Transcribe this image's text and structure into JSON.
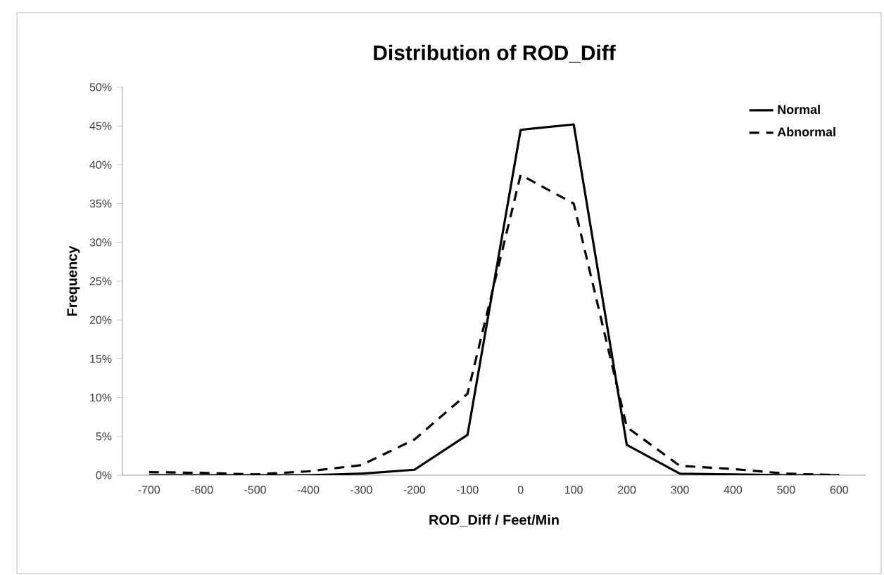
{
  "chart_data": {
    "type": "line",
    "title": "Distribution of ROD_Diff",
    "xlabel": "ROD_Diff / Feet/Min",
    "ylabel": "Frequency",
    "categories": [
      "-700",
      "-600",
      "-500",
      "-400",
      "-300",
      "-200",
      "-100",
      "0",
      "100",
      "200",
      "300",
      "400",
      "500",
      "600"
    ],
    "series": [
      {
        "name": "Normal",
        "color": "#000000",
        "line_style": "solid",
        "values": [
          0,
          0,
          0,
          0,
          0.2,
          0.7,
          5.2,
          44.5,
          45.2,
          3.9,
          0.2,
          0.1,
          0,
          0
        ]
      },
      {
        "name": "Abnormal",
        "color": "#000000",
        "line_style": "dashed",
        "values": [
          0.4,
          0.3,
          0.1,
          0.5,
          1.3,
          4.6,
          10.5,
          38.7,
          35,
          6.2,
          1.2,
          0.8,
          0.2,
          0
        ]
      }
    ],
    "ylim": [
      0,
      50
    ],
    "yticks": [
      {
        "value": 0,
        "label": "0%"
      },
      {
        "value": 5,
        "label": "5%"
      },
      {
        "value": 10,
        "label": "10%"
      },
      {
        "value": 15,
        "label": "15%"
      },
      {
        "value": 20,
        "label": "20%"
      },
      {
        "value": 25,
        "label": "25%"
      },
      {
        "value": 30,
        "label": "30%"
      },
      {
        "value": 35,
        "label": "35%"
      },
      {
        "value": 40,
        "label": "40%"
      },
      {
        "value": 45,
        "label": "45%"
      },
      {
        "value": 50,
        "label": "50%"
      }
    ],
    "legend": "top right",
    "grid": false,
    "marker": "none"
  }
}
